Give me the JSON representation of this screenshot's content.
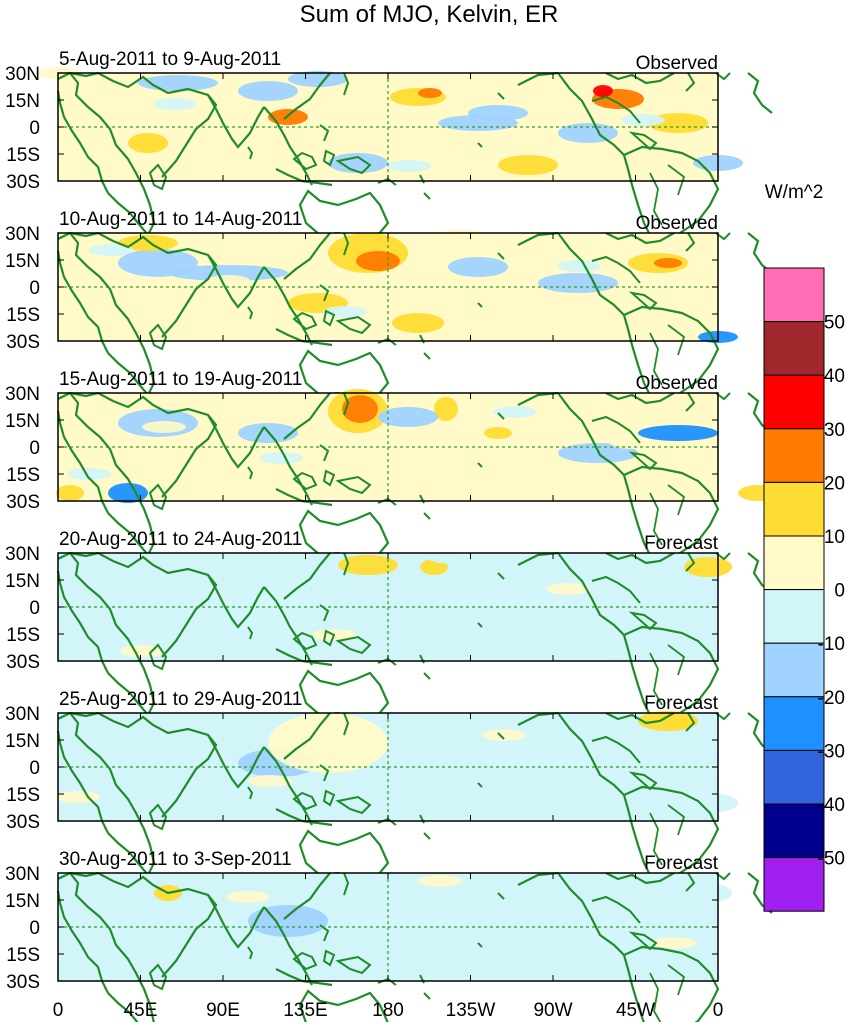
{
  "title": "Sum of MJO, Kelvin, ER",
  "lat_labels": [
    "30N",
    "15N",
    "0",
    "15S",
    "30S"
  ],
  "lon_labels": [
    "0",
    "45E",
    "90E",
    "135E",
    "180",
    "135W",
    "90W",
    "45W",
    "0"
  ],
  "panels": [
    {
      "period": "5-Aug-2011 to 9-Aug-2011",
      "type": "Observed"
    },
    {
      "period": "10-Aug-2011 to 14-Aug-2011",
      "type": "Observed"
    },
    {
      "period": "15-Aug-2011 to 19-Aug-2011",
      "type": "Observed"
    },
    {
      "period": "20-Aug-2011 to 24-Aug-2011",
      "type": "Forecast"
    },
    {
      "period": "25-Aug-2011 to 29-Aug-2011",
      "type": "Forecast"
    },
    {
      "period": "30-Aug-2011 to 3-Sep-2011",
      "type": "Forecast"
    }
  ],
  "colorbar": {
    "unit": "W/m^2",
    "levels": [
      "50",
      "40",
      "30",
      "20",
      "10",
      "0",
      "-10",
      "-20",
      "-30",
      "-40",
      "-50"
    ],
    "colors": [
      "#ff6eb4",
      "#a0282d",
      "#ff0000",
      "#ff7a00",
      "#ffdc32",
      "#fffac8",
      "#d2f5fa",
      "#a0d2ff",
      "#1e90ff",
      "#3264dc",
      "#00008c",
      "#a020f0"
    ]
  },
  "map_colors": {
    "land": "#1e8c28",
    "equator": "#2aa02a"
  }
}
